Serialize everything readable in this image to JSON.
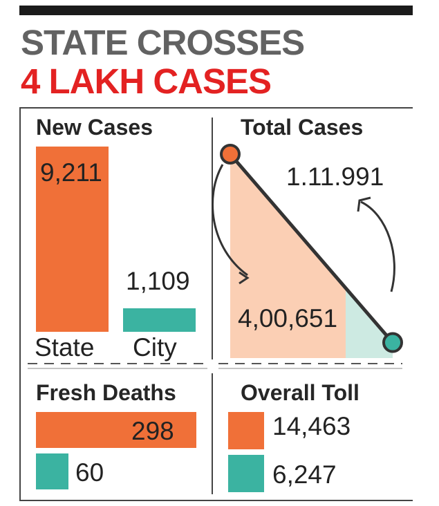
{
  "headline": {
    "line1": "STATE CROSSES",
    "line2": "4 LAKH CASES"
  },
  "colors": {
    "state": "#f07038",
    "city": "#3bb3a1",
    "state_light": "#fbcfb4",
    "city_light": "#cdeae2",
    "headline_grey": "#626262",
    "headline_red": "#e32222"
  },
  "chart_data": [
    {
      "type": "bar",
      "title": "New Cases",
      "categories": [
        "State",
        "City"
      ],
      "values": [
        9211,
        1109
      ],
      "labels": [
        "9,211",
        "1,109"
      ]
    },
    {
      "type": "area",
      "title": "Total Cases",
      "series": [
        {
          "name": "State",
          "value": 400651,
          "label": "4,00,651"
        },
        {
          "name": "City",
          "value": 111991,
          "label": "1.11.991"
        }
      ]
    },
    {
      "type": "bar",
      "title": "Fresh Deaths",
      "orientation": "horizontal",
      "categories": [
        "State",
        "City"
      ],
      "values": [
        298,
        60
      ],
      "labels": [
        "298",
        "60"
      ]
    },
    {
      "type": "bar",
      "title": "Overall Toll",
      "categories": [
        "State",
        "City"
      ],
      "values": [
        14463,
        6247
      ],
      "labels": [
        "14,463",
        "6,247"
      ]
    }
  ]
}
